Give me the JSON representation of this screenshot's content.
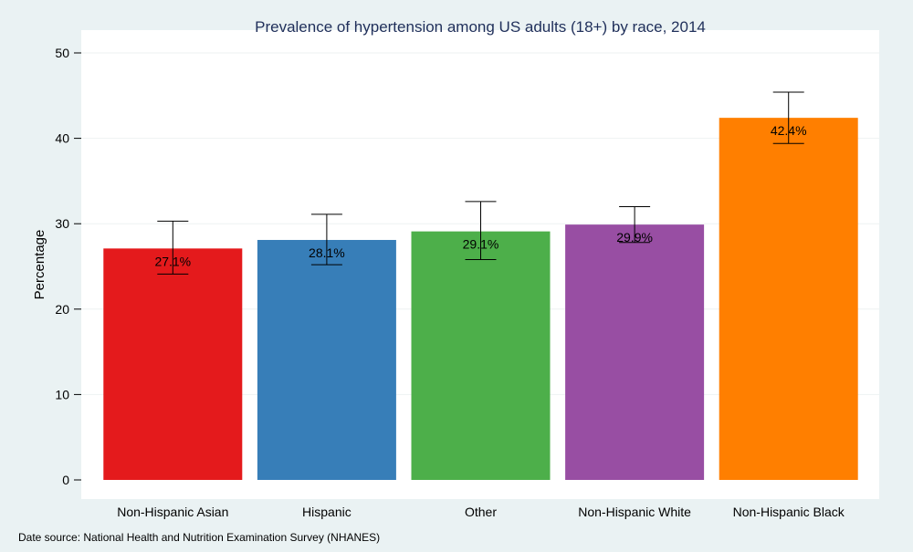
{
  "chart_data": {
    "type": "bar",
    "title": "Prevalence of hypertension among US adults (18+) by race, 2014",
    "xlabel": "",
    "ylabel": "Percentage",
    "ylim": [
      0,
      52
    ],
    "yticks": [
      0,
      10,
      20,
      30,
      40,
      50
    ],
    "grid": true,
    "categories": [
      "Non-Hispanic Asian",
      "Hispanic",
      "Other",
      "Non-Hispanic White",
      "Non-Hispanic Black"
    ],
    "values": [
      27.1,
      28.1,
      29.1,
      29.9,
      42.4
    ],
    "value_labels": [
      "27.1%",
      "28.1%",
      "29.1%",
      "29.9%",
      "42.4%"
    ],
    "error_low": [
      24.1,
      25.2,
      25.8,
      27.8,
      39.4
    ],
    "error_high": [
      30.3,
      31.1,
      32.6,
      32.0,
      45.4
    ],
    "colors": [
      "#e41a1c",
      "#377eb8",
      "#4daf4a",
      "#984ea3",
      "#ff7f00"
    ],
    "source_note": "Date source: National Health and Nutrition Examination Survey (NHANES)"
  }
}
